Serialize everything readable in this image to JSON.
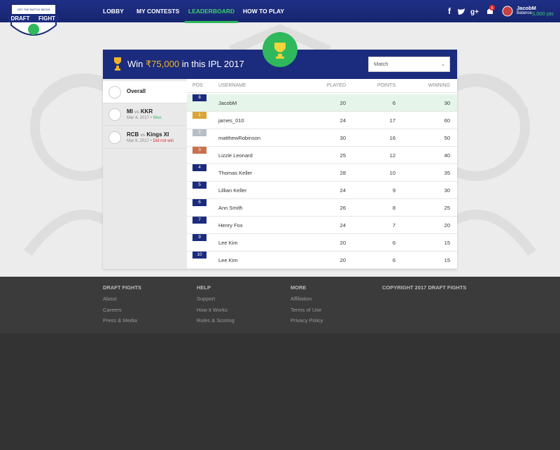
{
  "logo": {
    "top": "GET THE BATTLE BEGIN",
    "left": "DRAFT",
    "right": "FIGHT"
  },
  "nav": [
    "LOBBY",
    "MY CONTESTS",
    "LEADERBOARD",
    "HOW TO PLAY"
  ],
  "user": {
    "notifications": 5,
    "name": "JacobM",
    "balance_label": "Balance",
    "balance": "5,000 pts"
  },
  "banner": {
    "prefix": "Win",
    "amount": "₹75,000",
    "suffix": "in this IPL 2017",
    "select": "Match"
  },
  "sidebar": [
    {
      "title": "Overall"
    },
    {
      "team1": "MI",
      "vs": "vs",
      "team2": "KKR",
      "date": "Mar 4, 2017",
      "status": "Won"
    },
    {
      "team1": "RCB",
      "vs": "vs",
      "team2": "Kings XI",
      "date": "Mar 8, 2017",
      "status": "Did not win"
    }
  ],
  "table": {
    "columns": [
      "POS",
      "USERNAME",
      "PLAYED",
      "POINTS",
      "WINNING"
    ],
    "rows": [
      [
        8,
        "JacobM",
        20,
        6,
        30
      ],
      [
        1,
        "james_010",
        24,
        17,
        60
      ],
      [
        2,
        "matthewRobinson",
        30,
        16,
        50
      ],
      [
        3,
        "Lizzie Leonard",
        25,
        12,
        40
      ],
      [
        4,
        "Thomas Keller",
        28,
        10,
        35
      ],
      [
        5,
        "Lillian Keller",
        24,
        9,
        30
      ],
      [
        6,
        "Ann Smith",
        26,
        8,
        25
      ],
      [
        7,
        "Henry Fox",
        24,
        7,
        20
      ],
      [
        9,
        "Lee Kim",
        20,
        6,
        15
      ],
      [
        10,
        "Lee Kim",
        20,
        6,
        15
      ]
    ]
  },
  "footer": {
    "columns": [
      {
        "heading": "DRAFT FIGHTS",
        "links": [
          "About",
          "Careers",
          "Press & Media"
        ]
      },
      {
        "heading": "HELP",
        "links": [
          "Support",
          "How it Works",
          "Rules & Scoring"
        ]
      },
      {
        "heading": "MORE",
        "links": [
          "Affiliation",
          "Terms of Use",
          "Privacy Policy"
        ]
      },
      {
        "heading": "COPYRIGHT 2017 DRAFT FIGHTS",
        "links": []
      }
    ]
  }
}
